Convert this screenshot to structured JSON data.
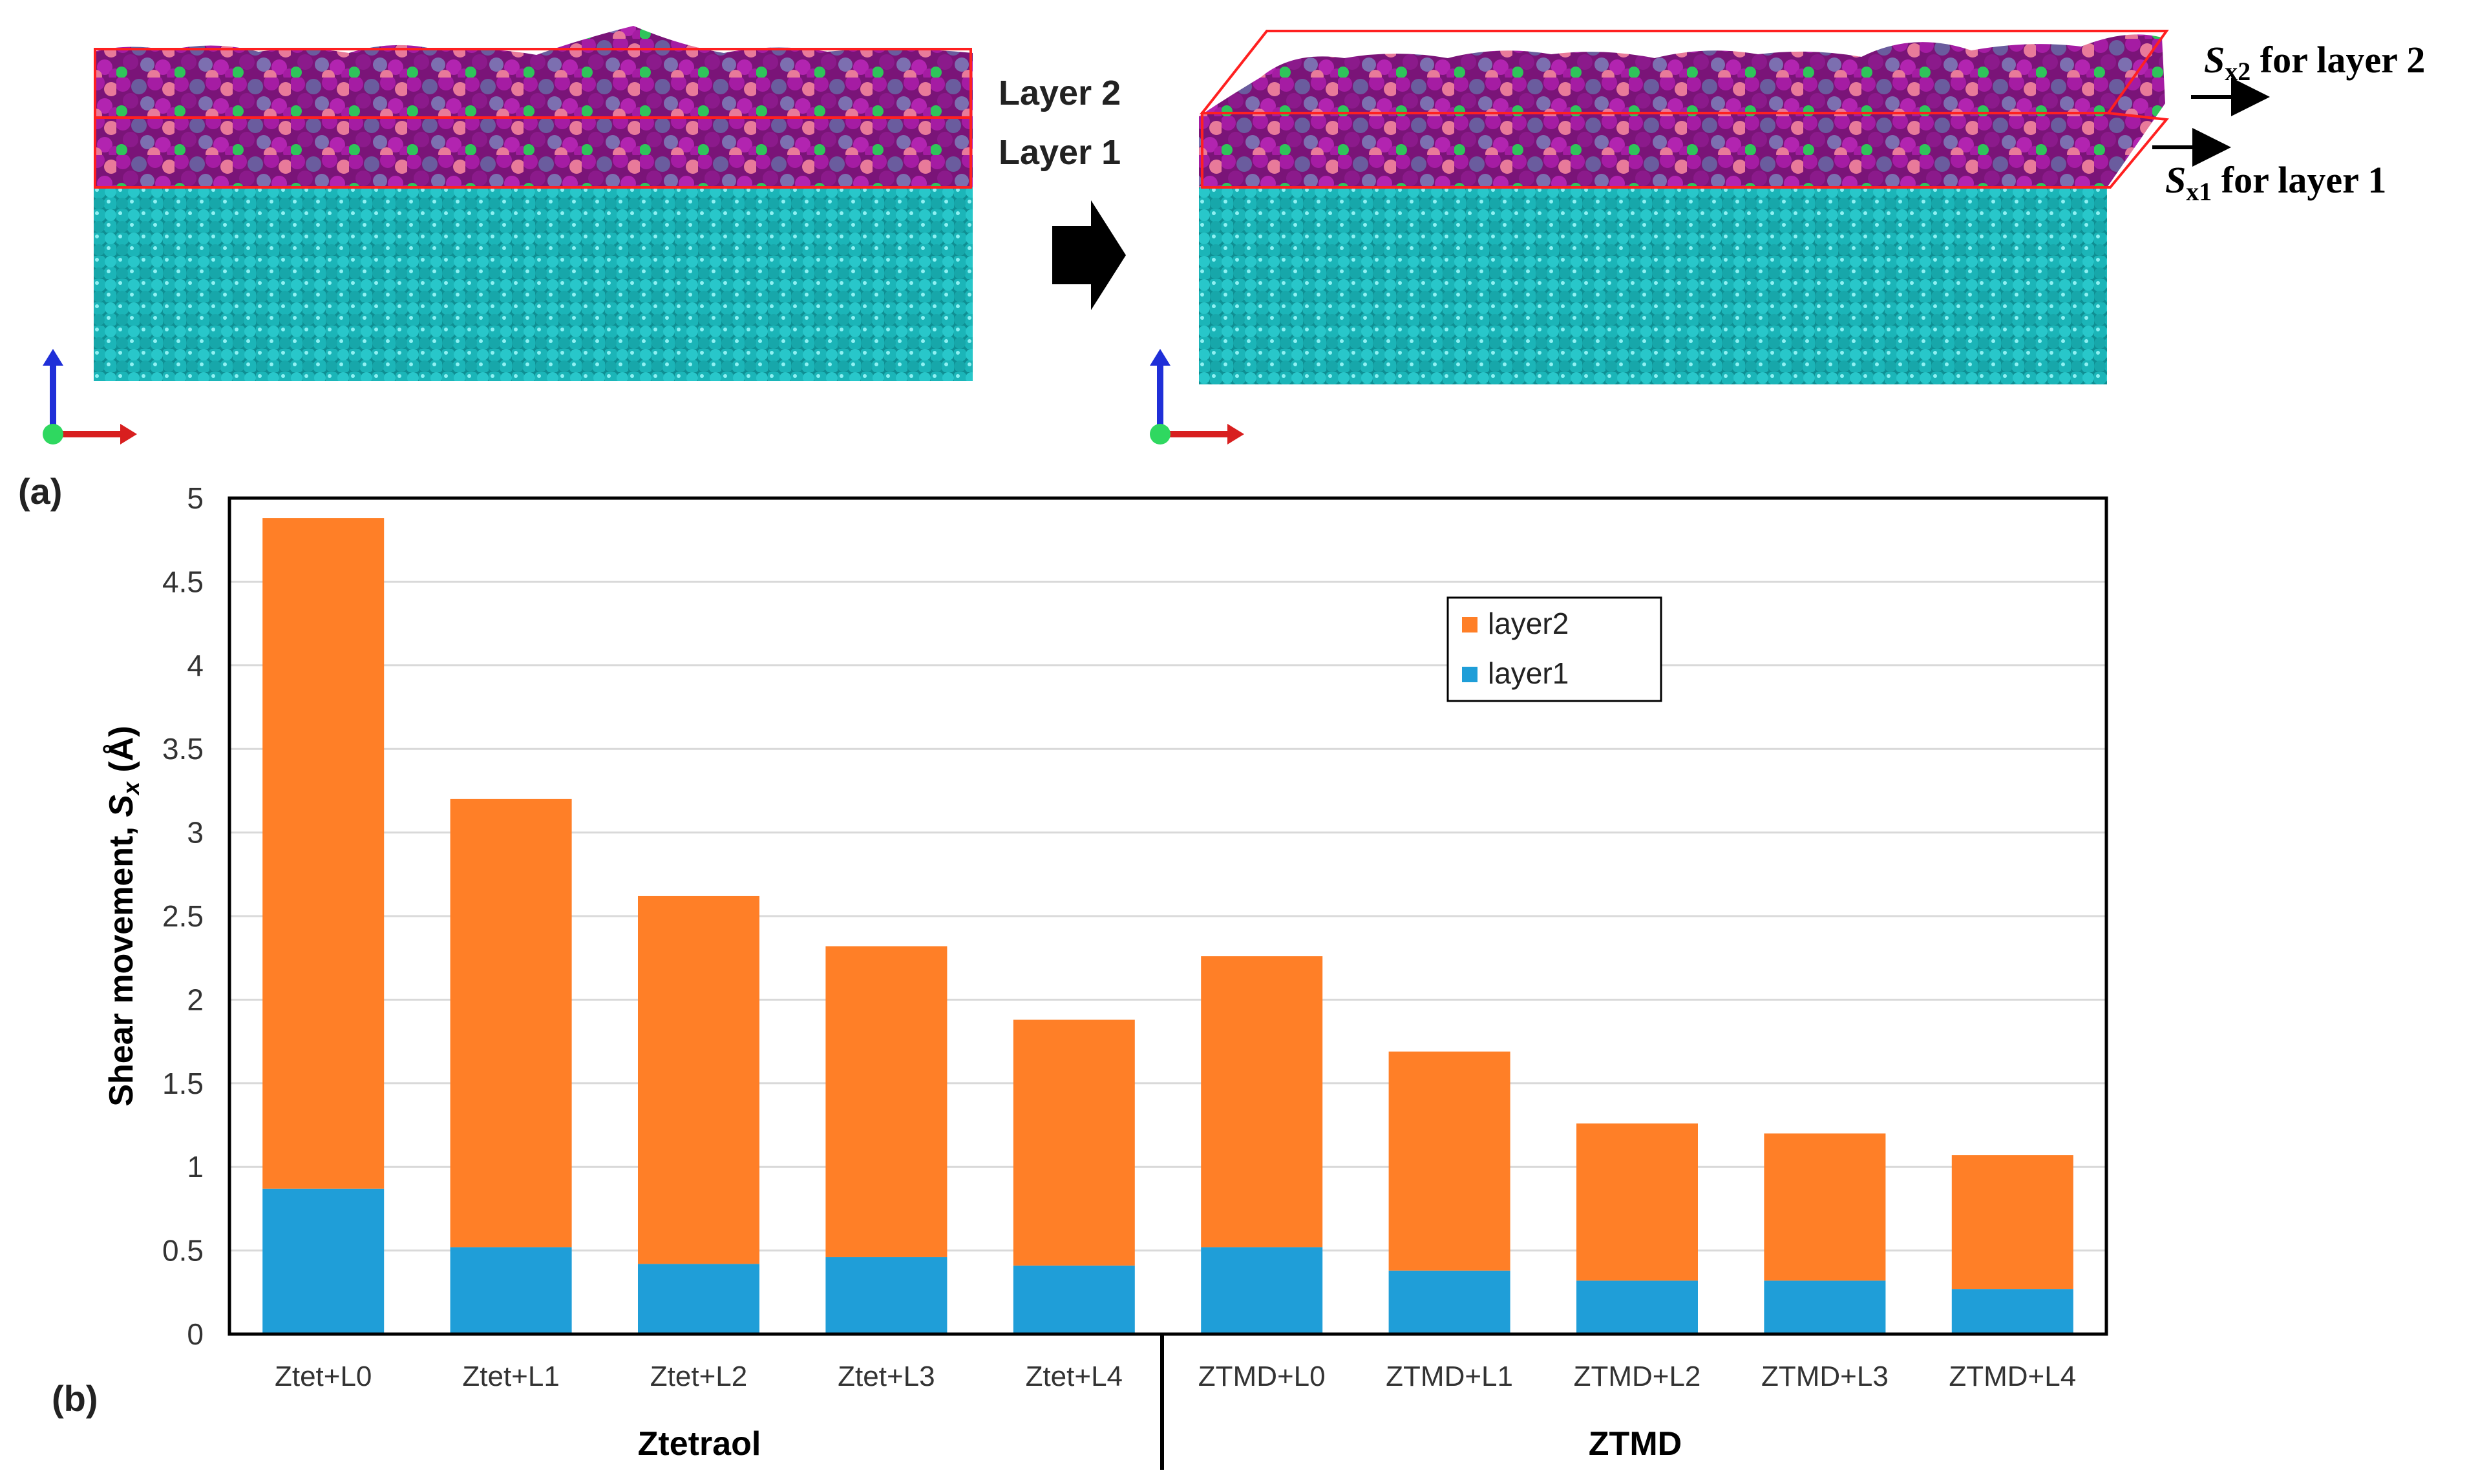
{
  "panel_a": {
    "label": "(a)",
    "layer2_label": "Layer 2",
    "layer1_label": "Layer 1",
    "shear2_symbol": "S",
    "shear2_sub": "x2",
    "shear2_text": " for layer 2",
    "shear1_symbol": "S",
    "shear1_sub": "x1",
    "shear1_text": " for layer 1",
    "colors": {
      "substrate": "#1bb5b8",
      "magenta": "#9b1a9b",
      "purple": "#6a5c9e",
      "pink": "#e87a9a",
      "green": "#2fc45a",
      "frame": "#ff2020"
    }
  },
  "panel_b_label": "(b)",
  "chart_data": {
    "type": "bar",
    "stacked": true,
    "categories": [
      "Ztet+L0",
      "Ztet+L1",
      "Ztet+L2",
      "Ztet+L3",
      "Ztet+L4",
      "ZTMD+L0",
      "ZTMD+L1",
      "ZTMD+L2",
      "ZTMD+L3",
      "ZTMD+L4"
    ],
    "series": [
      {
        "name": "layer1",
        "color": "#1f9ed8",
        "values": [
          0.87,
          0.52,
          0.42,
          0.46,
          0.41,
          0.52,
          0.38,
          0.32,
          0.32,
          0.27
        ]
      },
      {
        "name": "layer2",
        "color": "#ff7f27",
        "values": [
          4.01,
          2.68,
          2.2,
          1.86,
          1.47,
          1.74,
          1.31,
          0.94,
          0.88,
          0.8
        ]
      }
    ],
    "ylabel": "Shear movement, ",
    "ylabel_symbol": "S",
    "ylabel_sub": "x",
    "ylabel_unit": " (Å)",
    "ylim": [
      0,
      5
    ],
    "yticks": [
      "0",
      "0.5",
      "1",
      "1.5",
      "2",
      "2.5",
      "3",
      "3.5",
      "4",
      "4.5",
      "5"
    ],
    "group_labels": [
      "Ztetraol",
      "ZTMD"
    ],
    "legend": [
      "layer2",
      "layer1"
    ],
    "legend_position": "top-right",
    "grid": true
  }
}
